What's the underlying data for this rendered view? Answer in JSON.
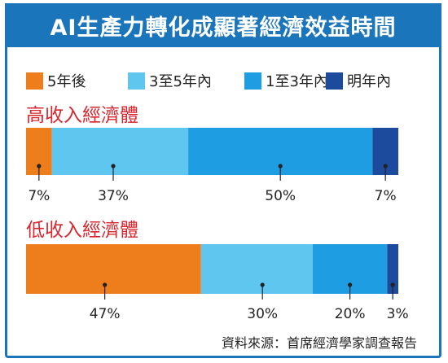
{
  "title": "AI生產力轉化成顯著經濟效益時間",
  "colors": [
    "#ee7d1b",
    "#5ec6ef",
    "#1e9de2",
    "#1c4a9c"
  ],
  "legend": [
    "5年後",
    "3至5年內",
    "1至3年內",
    "明年內"
  ],
  "source": "資料來源：首席經濟學家調查報告",
  "chart_data": {
    "type": "bar",
    "orientation": "horizontal",
    "stacked": true,
    "title": "AI生產力轉化成顯著經濟效益時間",
    "unit": "%",
    "categories": [
      "高收入經濟體",
      "低收入經濟體"
    ],
    "series": [
      {
        "name": "5年後",
        "values": [
          7,
          47
        ],
        "labels": [
          "7%",
          "47%"
        ]
      },
      {
        "name": "3至5年內",
        "values": [
          37,
          30
        ],
        "labels": [
          "37%",
          "30%"
        ]
      },
      {
        "name": "1至3年內",
        "values": [
          50,
          20
        ],
        "labels": [
          "50%",
          "20%"
        ]
      },
      {
        "name": "明年內",
        "values": [
          7,
          3
        ],
        "labels": [
          "7%",
          "3%"
        ]
      }
    ]
  }
}
